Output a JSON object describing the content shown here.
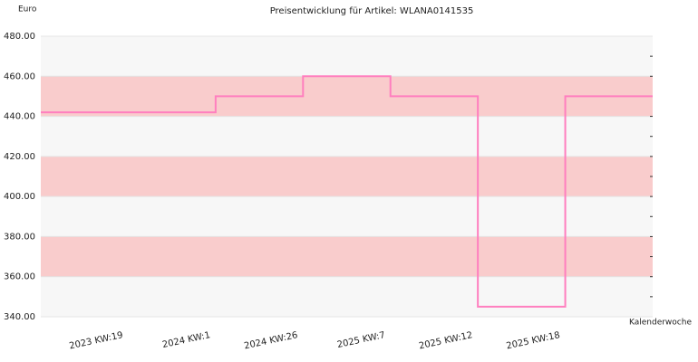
{
  "chart_data": {
    "type": "step",
    "title": "Preisentwicklung für Artikel: WLANA0141535",
    "y_label": "Euro",
    "x_label": "Kalenderwoche",
    "categories": [
      null,
      "2023 KW:19",
      "2024 KW:1",
      "2024 KW:26",
      "2025 KW:7",
      "2025 KW:12",
      "2025 KW:18"
    ],
    "values": [
      442,
      442,
      450,
      460,
      450,
      345,
      450
    ],
    "color": "#ff7fbf",
    "band_colors": [
      "#f7f7f7",
      "#f9cccc"
    ],
    "ylim": [
      340,
      480
    ],
    "yticks": [
      {
        "value": 340,
        "label": "340.00"
      },
      {
        "value": 360,
        "label": "360.00"
      },
      {
        "value": 380,
        "label": "380.00"
      },
      {
        "value": 400,
        "label": "400.00"
      },
      {
        "value": 420,
        "label": "420.00"
      },
      {
        "value": 440,
        "label": "440.00"
      },
      {
        "value": 460,
        "label": "460.00"
      },
      {
        "value": 480,
        "label": "480.00"
      }
    ],
    "minor_yticks": [
      350,
      360,
      370,
      380,
      390,
      400,
      410,
      420,
      430,
      440,
      450,
      460,
      470
    ]
  }
}
